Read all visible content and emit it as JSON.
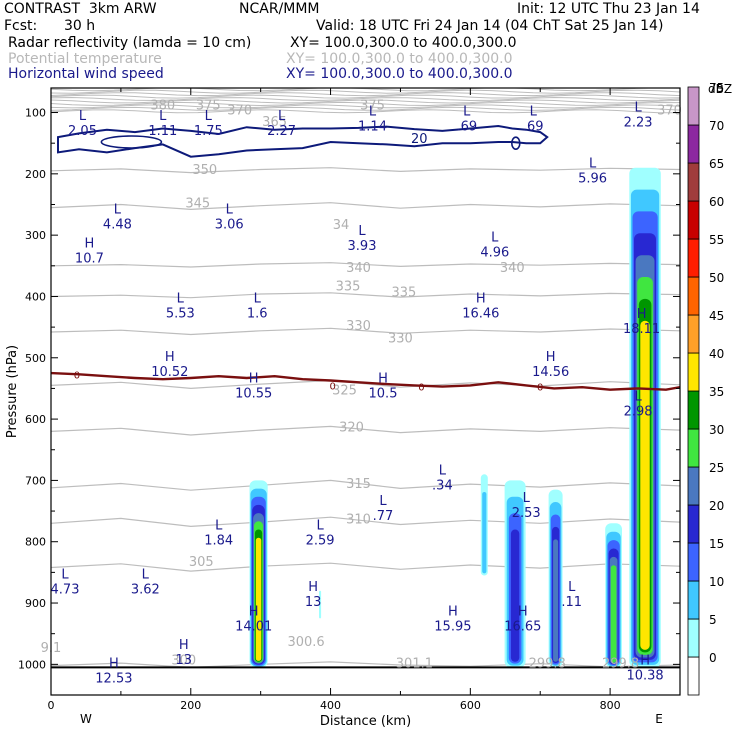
{
  "header": {
    "title": "CONTRAST  3km ARW",
    "fcst_label": "Fcst:",
    "fcst_value": "30 h",
    "org": "NCAR/MMM",
    "init": "Init: 12 UTC Thu 23 Jan 14",
    "valid": "Valid: 18 UTC Fri 24 Jan 14 (04 ChT Sat 25 Jan 14)",
    "fields": [
      {
        "name": "Radar reflectivity (lamda = 10 cm)",
        "xy": "XY= 100.0,300.0 to 400.0,300.0",
        "color": "#000000"
      },
      {
        "name": "Potential temperature",
        "xy": "XY= 100.0,300.0 to 400.0,300.0",
        "color": "#b8b8b8"
      },
      {
        "name": "Horizontal wind speed",
        "xy": "XY= 100.0,300.0 to 400.0,300.0",
        "color": "#1a1a8c"
      }
    ]
  },
  "chart_data": {
    "type": "cross-section",
    "xlabel": "Distance (km)",
    "ylabel": "Pressure (hPa)",
    "xlim": [
      0,
      900
    ],
    "ylim": [
      1050,
      60
    ],
    "x_ticks": [
      0,
      200,
      400,
      600,
      800
    ],
    "y_ticks": [
      100,
      200,
      300,
      400,
      500,
      600,
      700,
      800,
      900,
      1000
    ],
    "endpoints": {
      "left": "W",
      "right": "E"
    },
    "colorbar": {
      "unit": "dBZ",
      "levels": [
        0,
        5,
        10,
        15,
        20,
        25,
        30,
        35,
        40,
        45,
        50,
        55,
        60,
        65,
        70,
        75
      ],
      "colors": [
        "#ffffff",
        "#a0ffff",
        "#40c8ff",
        "#3c64ff",
        "#2828d2",
        "#4a78c0",
        "#40e640",
        "#009600",
        "#ffe600",
        "#ffa028",
        "#ff6400",
        "#ff1e00",
        "#c80000",
        "#a03c3c",
        "#8c28a0",
        "#c896c8"
      ]
    },
    "theta_contours": [
      {
        "value": 300,
        "p": [
          1002,
          998,
          1005,
          1000,
          996,
          1001,
          1003,
          999,
          1004,
          1001
        ]
      },
      {
        "value": 305,
        "p": [
          842,
          836,
          848,
          840,
          835,
          845,
          838,
          843,
          836,
          840
        ]
      },
      {
        "value": 310,
        "p": [
          770,
          762,
          775,
          768,
          760,
          772,
          765,
          770,
          763,
          768
        ]
      },
      {
        "value": 315,
        "p": [
          712,
          705,
          716,
          708,
          700,
          713,
          706,
          711,
          704,
          709
        ]
      },
      {
        "value": 320,
        "p": [
          620,
          615,
          626,
          618,
          612,
          622,
          616,
          620,
          614,
          618
        ]
      },
      {
        "value": 325,
        "p": [
          545,
          540,
          550,
          543,
          537,
          548,
          541,
          546,
          539,
          544
        ]
      },
      {
        "value": 330,
        "p": [
          458,
          455,
          462,
          456,
          452,
          460,
          455,
          458,
          453,
          456
        ]
      },
      {
        "value": 335,
        "p": [
          400,
          398,
          402,
          396,
          394,
          401,
          396,
          399,
          395,
          397
        ]
      },
      {
        "value": 340,
        "p": [
          350,
          348,
          352,
          347,
          345,
          351,
          347,
          349,
          346,
          348
        ]
      },
      {
        "value": 345,
        "p": [
          255,
          250,
          258,
          252,
          247,
          256,
          250,
          254,
          249,
          252
        ]
      },
      {
        "value": 350,
        "p": [
          195,
          192,
          198,
          193,
          190,
          196,
          192,
          194,
          191,
          193
        ]
      }
    ],
    "theta_labels": [
      {
        "text": "350",
        "x": 220,
        "p": 200
      },
      {
        "text": "345",
        "x": 210,
        "p": 255
      },
      {
        "text": "34",
        "x": 415,
        "p": 290
      },
      {
        "text": "340",
        "x": 440,
        "p": 360
      },
      {
        "text": "340",
        "x": 660,
        "p": 360
      },
      {
        "text": "335",
        "x": 425,
        "p": 390
      },
      {
        "text": "335",
        "x": 505,
        "p": 400
      },
      {
        "text": "330",
        "x": 440,
        "p": 455
      },
      {
        "text": "330",
        "x": 500,
        "p": 475
      },
      {
        "text": "325",
        "x": 420,
        "p": 560
      },
      {
        "text": "320",
        "x": 430,
        "p": 620
      },
      {
        "text": "315",
        "x": 440,
        "p": 712
      },
      {
        "text": "310",
        "x": 440,
        "p": 770
      },
      {
        "text": "305",
        "x": 215,
        "p": 840
      },
      {
        "text": "300",
        "x": 190,
        "p": 1000
      },
      {
        "text": "300.6",
        "x": 365,
        "p": 970
      },
      {
        "text": "301.1",
        "x": 520,
        "p": 1005
      },
      {
        "text": "299.8",
        "x": 710,
        "p": 1005
      },
      {
        "text": "299.8",
        "x": 815,
        "p": 1005
      },
      {
        "text": "9.1",
        "x": 0,
        "p": 980
      },
      {
        "text": "380",
        "x": 160,
        "p": 95
      },
      {
        "text": "375",
        "x": 225,
        "p": 95
      },
      {
        "text": "370",
        "x": 270,
        "p": 103
      },
      {
        "text": "365",
        "x": 320,
        "p": 122
      },
      {
        "text": "375",
        "x": 460,
        "p": 95
      },
      {
        "text": "370",
        "x": 885,
        "p": 103
      }
    ],
    "wind_contours": [
      {
        "value": 20,
        "label_x": 530,
        "label_p": 143,
        "x": [
          10,
          40,
          80,
          120,
          160,
          200,
          240,
          280,
          320,
          360,
          400,
          440,
          480,
          520,
          560,
          600,
          640,
          660,
          680,
          700,
          710
        ],
        "p_top": [
          140,
          134,
          128,
          132,
          126,
          130,
          135,
          124,
          128,
          126,
          126,
          125,
          123,
          127,
          130,
          126,
          122,
          126,
          128,
          132,
          140
        ],
        "p_bot": [
          165,
          160,
          165,
          158,
          152,
          172,
          168,
          162,
          160,
          158,
          148,
          150,
          152,
          155,
          150,
          150,
          148,
          148,
          150,
          150,
          140
        ]
      },
      {
        "value": 0,
        "label_x": 37,
        "label_p": 527,
        "x": [
          0,
          40,
          80,
          120,
          160,
          200,
          240,
          280,
          320,
          360,
          400,
          440,
          480,
          520,
          560,
          600,
          640,
          680,
          720,
          760,
          800,
          840,
          880,
          900
        ],
        "p": [
          525,
          527,
          530,
          533,
          535,
          533,
          530,
          533,
          530,
          535,
          537,
          540,
          543,
          545,
          547,
          545,
          540,
          545,
          550,
          548,
          552,
          550,
          552,
          548
        ]
      }
    ],
    "wind_labels": [
      {
        "text": "20",
        "x": 527,
        "p": 143
      },
      {
        "text": "0",
        "x": 37,
        "p": 527
      },
      {
        "text": "0",
        "x": 403,
        "p": 545
      },
      {
        "text": "0",
        "x": 530,
        "p": 547
      },
      {
        "text": "0",
        "x": 700,
        "p": 547
      }
    ],
    "extrema": [
      {
        "type": "L",
        "value": "2.05",
        "x": 45,
        "p": 112
      },
      {
        "type": "L",
        "value": "1.11",
        "x": 160,
        "p": 112
      },
      {
        "type": "L",
        "value": "1.75",
        "x": 225,
        "p": 112
      },
      {
        "type": "L",
        "value": "2.27",
        "x": 330,
        "p": 112
      },
      {
        "type": "L",
        "value": "1.14",
        "x": 460,
        "p": 105
      },
      {
        "type": "L",
        "value": ".69",
        "x": 595,
        "p": 105
      },
      {
        "type": "L",
        "value": ".69",
        "x": 690,
        "p": 105
      },
      {
        "type": "L",
        "value": "2.23",
        "x": 840,
        "p": 98
      },
      {
        "type": "L",
        "value": "5.96",
        "x": 775,
        "p": 190
      },
      {
        "type": "L",
        "value": "4.48",
        "x": 95,
        "p": 265
      },
      {
        "type": "L",
        "value": "3.06",
        "x": 255,
        "p": 265
      },
      {
        "type": "L",
        "value": "3.93",
        "x": 445,
        "p": 300
      },
      {
        "type": "L",
        "value": "4.96",
        "x": 635,
        "p": 310
      },
      {
        "type": "H",
        "value": "10.7",
        "x": 55,
        "p": 320
      },
      {
        "type": "L",
        "value": "5.53",
        "x": 185,
        "p": 410
      },
      {
        "type": "L",
        "value": "1.6",
        "x": 295,
        "p": 410
      },
      {
        "type": "H",
        "value": "16.46",
        "x": 615,
        "p": 410
      },
      {
        "type": "H",
        "value": "18.11",
        "x": 845,
        "p": 435
      },
      {
        "type": "H",
        "value": "10.52",
        "x": 170,
        "p": 505
      },
      {
        "type": "H",
        "value": "14.56",
        "x": 715,
        "p": 505
      },
      {
        "type": "H",
        "value": "10.55",
        "x": 290,
        "p": 540
      },
      {
        "type": "H",
        "value": "10.5",
        "x": 475,
        "p": 540
      },
      {
        "type": "L",
        "value": "2.98",
        "x": 840,
        "p": 570
      },
      {
        "type": "L",
        "value": ".34",
        "x": 560,
        "p": 690
      },
      {
        "type": "L",
        "value": ".77",
        "x": 475,
        "p": 740
      },
      {
        "type": "L",
        "value": "2.53",
        "x": 680,
        "p": 735
      },
      {
        "type": "L",
        "value": "1.84",
        "x": 240,
        "p": 780
      },
      {
        "type": "L",
        "value": "2.59",
        "x": 385,
        "p": 780
      },
      {
        "type": "L",
        "value": "4.73",
        "x": 20,
        "p": 860
      },
      {
        "type": "L",
        "value": "3.62",
        "x": 135,
        "p": 860
      },
      {
        "type": "L",
        "value": ".11",
        "x": 745,
        "p": 880
      },
      {
        "type": "H",
        "value": "13",
        "x": 375,
        "p": 880
      },
      {
        "type": "H",
        "value": "14.01",
        "x": 290,
        "p": 920
      },
      {
        "type": "H",
        "value": "15.95",
        "x": 575,
        "p": 920
      },
      {
        "type": "H",
        "value": "16.65",
        "x": 675,
        "p": 920
      },
      {
        "type": "H",
        "value": "13",
        "x": 190,
        "p": 975
      },
      {
        "type": "H",
        "value": "12.53",
        "x": 90,
        "p": 1005
      },
      {
        "type": "H",
        "value": "10.38",
        "x": 850,
        "p": 1000
      }
    ],
    "reflectivity_cells": [
      {
        "x": 297,
        "p_top": 700,
        "p_bot": 1005,
        "w": 26,
        "max": 40
      },
      {
        "x": 385,
        "p_top": 880,
        "p_bot": 925,
        "w": 3,
        "max": 5
      },
      {
        "x": 620,
        "p_top": 690,
        "p_bot": 855,
        "w": 10,
        "max": 10
      },
      {
        "x": 664,
        "p_top": 700,
        "p_bot": 1005,
        "w": 30,
        "max": 20
      },
      {
        "x": 722,
        "p_top": 715,
        "p_bot": 1005,
        "w": 20,
        "max": 25
      },
      {
        "x": 805,
        "p_top": 770,
        "p_bot": 1005,
        "w": 24,
        "max": 30
      },
      {
        "x": 850,
        "p_top": 190,
        "p_bot": 1005,
        "w": 45,
        "max": 40
      }
    ],
    "ground_pressure": 1005
  }
}
